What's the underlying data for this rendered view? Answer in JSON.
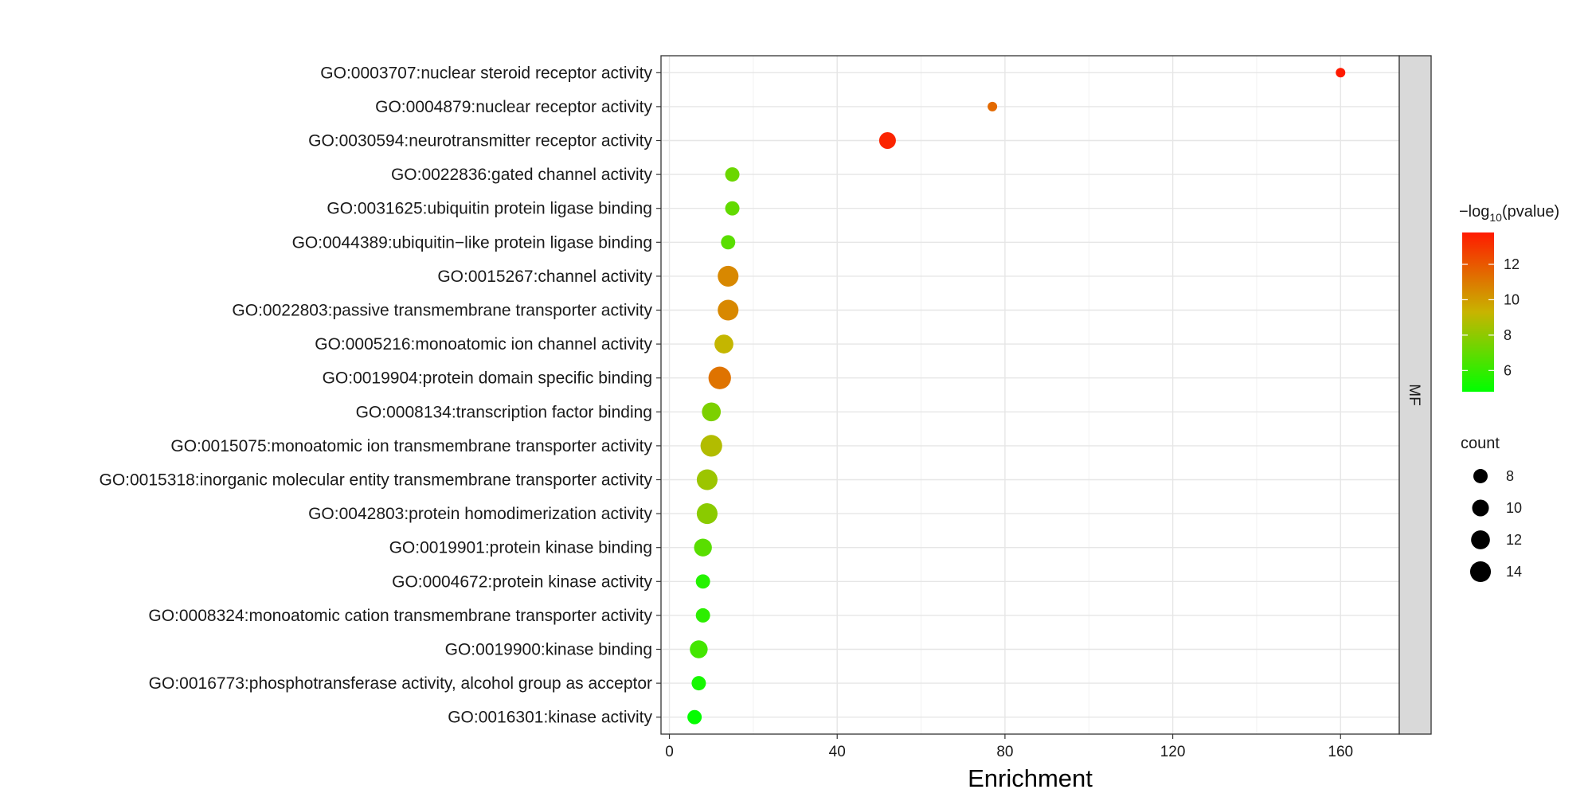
{
  "chart_data": {
    "type": "scatter",
    "xlabel": "Enrichment",
    "xlim": [
      -2,
      174
    ],
    "x_ticks": [
      0,
      40,
      80,
      120,
      160
    ],
    "facet_label": "MF",
    "grid": true,
    "colors": {
      "low": "#00ff00",
      "mid": "#c8b400",
      "high": "#ff1a00"
    },
    "color_legend": {
      "title_prefix": "−log",
      "title_subscript": "10",
      "title_suffix": "(pvalue)",
      "range": [
        4.8,
        13.8
      ],
      "ticks": [
        6,
        8,
        10,
        12
      ]
    },
    "size_legend": {
      "title": "count",
      "range": [
        5,
        16
      ],
      "ticks": [
        8,
        10,
        12,
        14
      ]
    },
    "points": [
      {
        "term": "GO:0003707:nuclear steroid receptor activity",
        "x": 160,
        "count": 5,
        "neglog10p": 13.8
      },
      {
        "term": "GO:0004879:nuclear receptor activity",
        "x": 77,
        "count": 5,
        "neglog10p": 11.5
      },
      {
        "term": "GO:0030594:neurotransmitter receptor activity",
        "x": 52,
        "count": 10,
        "neglog10p": 13.5
      },
      {
        "term": "GO:0022836:gated channel activity",
        "x": 15,
        "count": 8,
        "neglog10p": 7.2
      },
      {
        "term": "GO:0031625:ubiquitin protein ligase binding",
        "x": 15,
        "count": 8,
        "neglog10p": 7.0
      },
      {
        "term": "GO:0044389:ubiquitin−like protein ligase binding",
        "x": 14,
        "count": 8,
        "neglog10p": 6.8
      },
      {
        "term": "GO:0015267:channel activity",
        "x": 14,
        "count": 14,
        "neglog10p": 10.6
      },
      {
        "term": "GO:0022803:passive transmembrane transporter activity",
        "x": 14,
        "count": 14,
        "neglog10p": 10.6
      },
      {
        "term": "GO:0005216:monoatomic ion channel activity",
        "x": 13,
        "count": 12,
        "neglog10p": 9.2
      },
      {
        "term": "GO:0019904:protein domain specific binding",
        "x": 12,
        "count": 16,
        "neglog10p": 11.2
      },
      {
        "term": "GO:0008134:transcription factor binding",
        "x": 10,
        "count": 12,
        "neglog10p": 7.6
      },
      {
        "term": "GO:0015075:monoatomic ion transmembrane transporter activity",
        "x": 10,
        "count": 15,
        "neglog10p": 8.8
      },
      {
        "term": "GO:0015318:inorganic molecular entity transmembrane transporter activity",
        "x": 9,
        "count": 14,
        "neglog10p": 8.3
      },
      {
        "term": "GO:0042803:protein homodimerization activity",
        "x": 9,
        "count": 14,
        "neglog10p": 7.9
      },
      {
        "term": "GO:0019901:protein kinase binding",
        "x": 8,
        "count": 11,
        "neglog10p": 6.8
      },
      {
        "term": "GO:0004672:protein kinase activity",
        "x": 8,
        "count": 8,
        "neglog10p": 5.6
      },
      {
        "term": "GO:0008324:monoatomic cation transmembrane transporter activity",
        "x": 8,
        "count": 8,
        "neglog10p": 5.8
      },
      {
        "term": "GO:0019900:kinase binding",
        "x": 7,
        "count": 11,
        "neglog10p": 6.3
      },
      {
        "term": "GO:0016773:phosphotransferase activity, alcohol group as acceptor",
        "x": 7,
        "count": 8,
        "neglog10p": 5.3
      },
      {
        "term": "GO:0016301:kinase activity",
        "x": 6,
        "count": 8,
        "neglog10p": 4.9
      }
    ]
  }
}
